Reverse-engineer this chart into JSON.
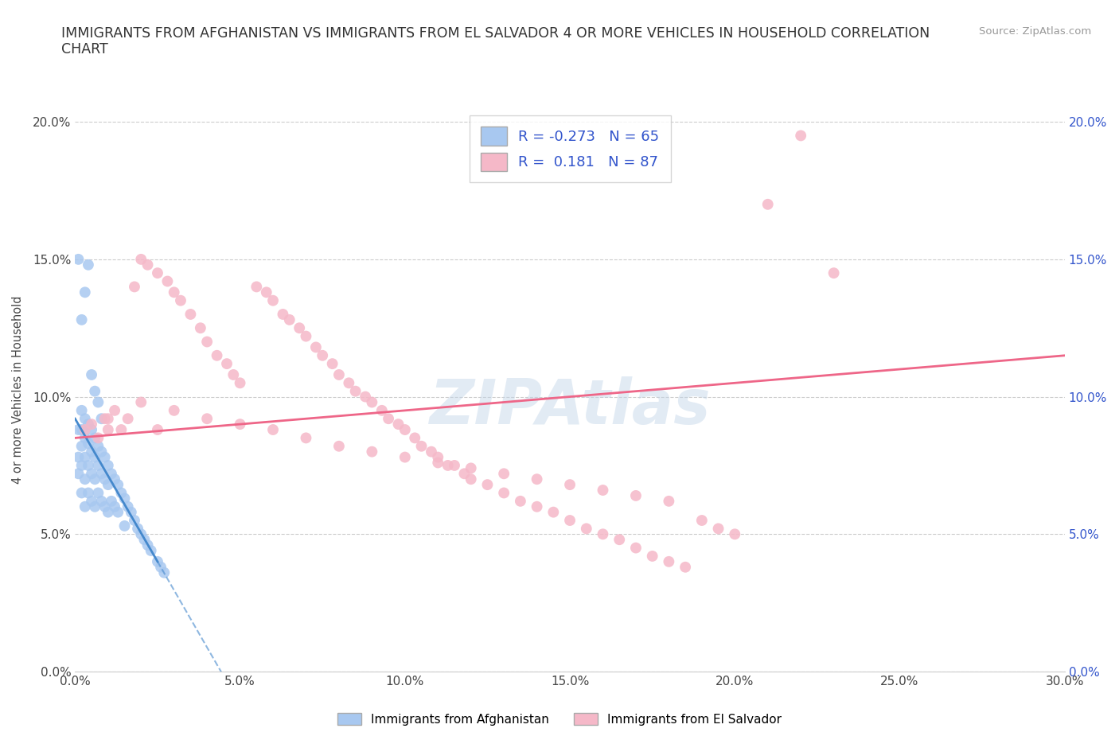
{
  "title": "IMMIGRANTS FROM AFGHANISTAN VS IMMIGRANTS FROM EL SALVADOR 4 OR MORE VEHICLES IN HOUSEHOLD CORRELATION\nCHART",
  "source_text": "Source: ZipAtlas.com",
  "ylabel": "4 or more Vehicles in Household",
  "xlim": [
    0.0,
    0.3
  ],
  "ylim": [
    0.0,
    0.205
  ],
  "xticks": [
    0.0,
    0.05,
    0.1,
    0.15,
    0.2,
    0.25,
    0.3
  ],
  "xtick_labels": [
    "0.0%",
    "5.0%",
    "10.0%",
    "15.0%",
    "20.0%",
    "25.0%",
    "30.0%"
  ],
  "yticks": [
    0.0,
    0.05,
    0.1,
    0.15,
    0.2
  ],
  "ytick_labels": [
    "0.0%",
    "5.0%",
    "10.0%",
    "15.0%",
    "20.0%"
  ],
  "afghanistan_color": "#a8c8f0",
  "el_salvador_color": "#f5b8c8",
  "afghanistan_R": -0.273,
  "afghanistan_N": 65,
  "el_salvador_R": 0.181,
  "el_salvador_N": 87,
  "watermark": "ZIPAtlas",
  "watermark_color": "#c0d4e8",
  "legend_R_color": "#3355cc",
  "background_color": "#ffffff",
  "grid_color": "#cccccc",
  "afghanistan_line_color": "#4488cc",
  "el_salvador_line_color": "#ee6688",
  "af_line_x0": 0.0,
  "af_line_y0": 0.092,
  "af_line_x1": 0.025,
  "af_line_y1": 0.04,
  "af_line_solid_end": 0.025,
  "af_line_dash_end": 0.3,
  "es_line_x0": 0.0,
  "es_line_y0": 0.085,
  "es_line_x1": 0.3,
  "es_line_y1": 0.115,
  "afghanistan_scatter": {
    "x": [
      0.001,
      0.001,
      0.001,
      0.002,
      0.002,
      0.002,
      0.002,
      0.002,
      0.003,
      0.003,
      0.003,
      0.003,
      0.003,
      0.004,
      0.004,
      0.004,
      0.004,
      0.005,
      0.005,
      0.005,
      0.005,
      0.006,
      0.006,
      0.006,
      0.006,
      0.007,
      0.007,
      0.007,
      0.008,
      0.008,
      0.008,
      0.009,
      0.009,
      0.009,
      0.01,
      0.01,
      0.01,
      0.011,
      0.011,
      0.012,
      0.012,
      0.013,
      0.013,
      0.014,
      0.015,
      0.015,
      0.016,
      0.017,
      0.018,
      0.019,
      0.02,
      0.021,
      0.022,
      0.023,
      0.025,
      0.026,
      0.027,
      0.004,
      0.003,
      0.002,
      0.001,
      0.005,
      0.006,
      0.007,
      0.008
    ],
    "y": [
      0.088,
      0.078,
      0.072,
      0.095,
      0.088,
      0.082,
      0.075,
      0.065,
      0.092,
      0.085,
      0.078,
      0.07,
      0.06,
      0.09,
      0.083,
      0.075,
      0.065,
      0.088,
      0.08,
      0.072,
      0.062,
      0.085,
      0.078,
      0.07,
      0.06,
      0.082,
      0.075,
      0.065,
      0.08,
      0.072,
      0.062,
      0.078,
      0.07,
      0.06,
      0.075,
      0.068,
      0.058,
      0.072,
      0.062,
      0.07,
      0.06,
      0.068,
      0.058,
      0.065,
      0.063,
      0.053,
      0.06,
      0.058,
      0.055,
      0.052,
      0.05,
      0.048,
      0.046,
      0.044,
      0.04,
      0.038,
      0.036,
      0.148,
      0.138,
      0.128,
      0.15,
      0.108,
      0.102,
      0.098,
      0.092
    ]
  },
  "el_salvador_scatter": {
    "x": [
      0.003,
      0.005,
      0.007,
      0.009,
      0.01,
      0.012,
      0.014,
      0.016,
      0.018,
      0.02,
      0.022,
      0.025,
      0.028,
      0.03,
      0.032,
      0.035,
      0.038,
      0.04,
      0.043,
      0.046,
      0.048,
      0.05,
      0.055,
      0.058,
      0.06,
      0.063,
      0.065,
      0.068,
      0.07,
      0.073,
      0.075,
      0.078,
      0.08,
      0.083,
      0.085,
      0.088,
      0.09,
      0.093,
      0.095,
      0.098,
      0.1,
      0.103,
      0.105,
      0.108,
      0.11,
      0.113,
      0.115,
      0.118,
      0.12,
      0.125,
      0.13,
      0.135,
      0.14,
      0.145,
      0.15,
      0.155,
      0.16,
      0.165,
      0.17,
      0.175,
      0.18,
      0.185,
      0.19,
      0.195,
      0.2,
      0.21,
      0.22,
      0.23,
      0.01,
      0.02,
      0.03,
      0.04,
      0.05,
      0.06,
      0.07,
      0.08,
      0.09,
      0.1,
      0.11,
      0.12,
      0.13,
      0.14,
      0.15,
      0.16,
      0.17,
      0.18,
      0.025
    ],
    "y": [
      0.088,
      0.09,
      0.085,
      0.092,
      0.088,
      0.095,
      0.088,
      0.092,
      0.14,
      0.15,
      0.148,
      0.145,
      0.142,
      0.138,
      0.135,
      0.13,
      0.125,
      0.12,
      0.115,
      0.112,
      0.108,
      0.105,
      0.14,
      0.138,
      0.135,
      0.13,
      0.128,
      0.125,
      0.122,
      0.118,
      0.115,
      0.112,
      0.108,
      0.105,
      0.102,
      0.1,
      0.098,
      0.095,
      0.092,
      0.09,
      0.088,
      0.085,
      0.082,
      0.08,
      0.078,
      0.075,
      0.075,
      0.072,
      0.07,
      0.068,
      0.065,
      0.062,
      0.06,
      0.058,
      0.055,
      0.052,
      0.05,
      0.048,
      0.045,
      0.042,
      0.04,
      0.038,
      0.055,
      0.052,
      0.05,
      0.17,
      0.195,
      0.145,
      0.092,
      0.098,
      0.095,
      0.092,
      0.09,
      0.088,
      0.085,
      0.082,
      0.08,
      0.078,
      0.076,
      0.074,
      0.072,
      0.07,
      0.068,
      0.066,
      0.064,
      0.062,
      0.088
    ]
  }
}
